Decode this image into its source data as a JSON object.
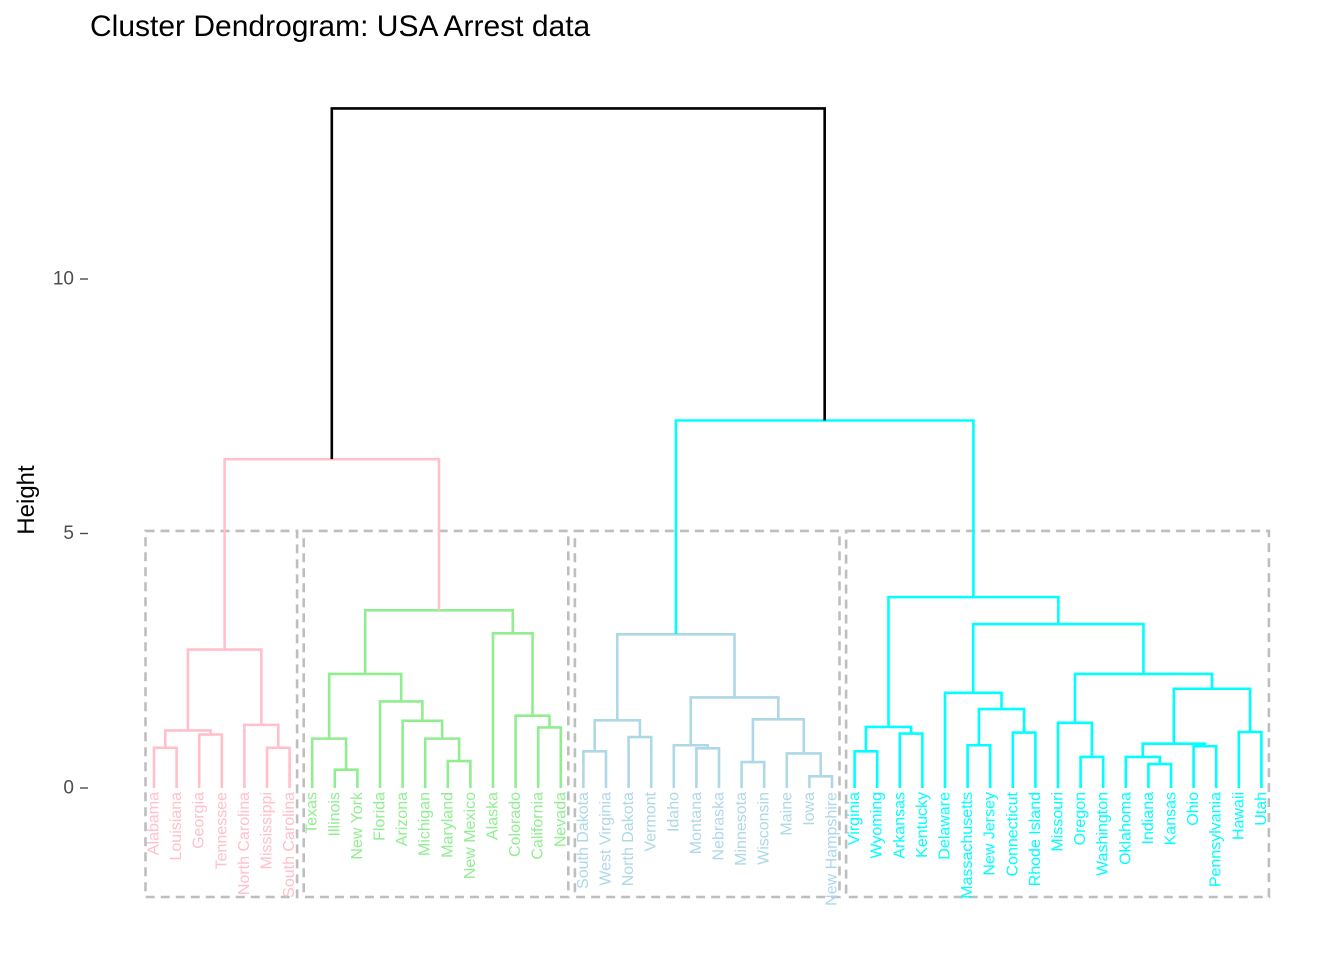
{
  "chart_data": {
    "type": "dendrogram",
    "title": "Cluster Dendrogram: USA Arrest data",
    "ylabel": "Height",
    "xlabel": "",
    "ylim": [
      0,
      13
    ],
    "y_ticks": [
      0,
      5,
      10
    ],
    "grid": false,
    "cut_height": 5.05,
    "colors": {
      "root": "#000000",
      "cluster_1": "#FFC0CB",
      "cluster_2": "#90EE90",
      "cluster_3": "#ADD8E6",
      "cluster_4": "#00FFFF",
      "boxes": "#BEBEBE",
      "tick": "#4d4d4d"
    },
    "clusters": [
      {
        "id": 1,
        "color_key": "cluster_1",
        "leaves": [
          "Alabama",
          "Louisiana",
          "Georgia",
          "Tennessee",
          "North Carolina",
          "Mississippi",
          "South Carolina"
        ]
      },
      {
        "id": 2,
        "color_key": "cluster_2",
        "leaves": [
          "Texas",
          "Illinois",
          "New York",
          "Florida",
          "Arizona",
          "Michigan",
          "Maryland",
          "New Mexico",
          "Alaska",
          "Colorado",
          "California",
          "Nevada"
        ]
      },
      {
        "id": 3,
        "color_key": "cluster_3",
        "leaves": [
          "South Dakota",
          "West Virginia",
          "North Dakota",
          "Vermont",
          "Idaho",
          "Montana",
          "Nebraska",
          "Minnesota",
          "Wisconsin",
          "Maine",
          "Iowa",
          "New Hampshire"
        ]
      },
      {
        "id": 4,
        "color_key": "cluster_4",
        "leaves": [
          "Virginia",
          "Wyoming",
          "Arkansas",
          "Kentucky",
          "Delaware",
          "Massachusetts",
          "New Jersey",
          "Connecticut",
          "Rhode Island",
          "Missouri",
          "Oregon",
          "Washington",
          "Oklahoma",
          "Indiana",
          "Kansas",
          "Ohio",
          "Pennsylvania",
          "Hawaii",
          "Utah"
        ]
      }
    ],
    "tree": {
      "h": 13.35,
      "c": "root",
      "ch": [
        {
          "h": 6.46,
          "c": "cluster_1",
          "ch": [
            {
              "h": 2.72,
              "c": "cluster_1",
              "ch": [
                {
                  "h": 1.13,
                  "c": "cluster_1",
                  "ch": [
                    {
                      "h": 0.79,
                      "c": "cluster_1",
                      "ch": [
                        {
                          "l": "Alabama"
                        },
                        {
                          "l": "Louisiana"
                        }
                      ]
                    },
                    {
                      "h": 1.05,
                      "c": "cluster_1",
                      "ch": [
                        {
                          "l": "Georgia"
                        },
                        {
                          "l": "Tennessee"
                        }
                      ]
                    }
                  ]
                },
                {
                  "h": 1.24,
                  "c": "cluster_1",
                  "ch": [
                    {
                      "l": "North Carolina"
                    },
                    {
                      "h": 0.79,
                      "c": "cluster_1",
                      "ch": [
                        {
                          "l": "Mississippi"
                        },
                        {
                          "l": "South Carolina"
                        }
                      ]
                    }
                  ]
                }
              ]
            },
            {
              "h": 3.49,
              "c": "cluster_2",
              "ch": [
                {
                  "h": 2.24,
                  "c": "cluster_2",
                  "ch": [
                    {
                      "h": 0.97,
                      "c": "cluster_2",
                      "ch": [
                        {
                          "l": "Texas"
                        },
                        {
                          "h": 0.36,
                          "c": "cluster_2",
                          "ch": [
                            {
                              "l": "Illinois"
                            },
                            {
                              "l": "New York"
                            }
                          ]
                        }
                      ]
                    },
                    {
                      "h": 1.7,
                      "c": "cluster_2",
                      "ch": [
                        {
                          "l": "Florida"
                        },
                        {
                          "h": 1.32,
                          "c": "cluster_2",
                          "ch": [
                            {
                              "l": "Arizona"
                            },
                            {
                              "h": 0.97,
                              "c": "cluster_2",
                              "ch": [
                                {
                                  "l": "Michigan"
                                },
                                {
                                  "h": 0.53,
                                  "c": "cluster_2",
                                  "ch": [
                                    {
                                      "l": "Maryland"
                                    },
                                    {
                                      "l": "New Mexico"
                                    }
                                  ]
                                }
                              ]
                            }
                          ]
                        }
                      ]
                    }
                  ]
                },
                {
                  "h": 3.04,
                  "c": "cluster_2",
                  "ch": [
                    {
                      "l": "Alaska"
                    },
                    {
                      "h": 1.42,
                      "c": "cluster_2",
                      "ch": [
                        {
                          "l": "Colorado"
                        },
                        {
                          "h": 1.19,
                          "c": "cluster_2",
                          "ch": [
                            {
                              "l": "California"
                            },
                            {
                              "l": "Nevada"
                            }
                          ]
                        }
                      ]
                    }
                  ]
                }
              ]
            }
          ]
        },
        {
          "h": 7.22,
          "c": "cluster_4",
          "ch": [
            {
              "h": 3.02,
              "c": "cluster_3",
              "ch": [
                {
                  "h": 1.33,
                  "c": "cluster_3",
                  "ch": [
                    {
                      "h": 0.72,
                      "c": "cluster_3",
                      "ch": [
                        {
                          "l": "South Dakota"
                        },
                        {
                          "l": "West Virginia"
                        }
                      ]
                    },
                    {
                      "h": 1.0,
                      "c": "cluster_3",
                      "ch": [
                        {
                          "l": "North Dakota"
                        },
                        {
                          "l": "Vermont"
                        }
                      ]
                    }
                  ]
                },
                {
                  "h": 1.78,
                  "c": "cluster_3",
                  "ch": [
                    {
                      "h": 0.84,
                      "c": "cluster_3",
                      "ch": [
                        {
                          "l": "Idaho"
                        },
                        {
                          "h": 0.78,
                          "c": "cluster_3",
                          "ch": [
                            {
                              "l": "Montana"
                            },
                            {
                              "l": "Nebraska"
                            }
                          ]
                        }
                      ]
                    },
                    {
                      "h": 1.35,
                      "c": "cluster_3",
                      "ch": [
                        {
                          "h": 0.51,
                          "c": "cluster_3",
                          "ch": [
                            {
                              "l": "Minnesota"
                            },
                            {
                              "l": "Wisconsin"
                            }
                          ]
                        },
                        {
                          "h": 0.68,
                          "c": "cluster_3",
                          "ch": [
                            {
                              "l": "Maine"
                            },
                            {
                              "h": 0.23,
                              "c": "cluster_3",
                              "ch": [
                                {
                                  "l": "Iowa"
                                },
                                {
                                  "l": "New Hampshire"
                                }
                              ]
                            }
                          ]
                        }
                      ]
                    }
                  ]
                }
              ]
            },
            {
              "h": 3.75,
              "c": "cluster_4",
              "ch": [
                {
                  "h": 1.2,
                  "c": "cluster_4",
                  "ch": [
                    {
                      "h": 0.72,
                      "c": "cluster_4",
                      "ch": [
                        {
                          "l": "Virginia"
                        },
                        {
                          "l": "Wyoming"
                        }
                      ]
                    },
                    {
                      "h": 1.07,
                      "c": "cluster_4",
                      "ch": [
                        {
                          "l": "Arkansas"
                        },
                        {
                          "l": "Kentucky"
                        }
                      ]
                    }
                  ]
                },
                {
                  "h": 3.22,
                  "c": "cluster_4",
                  "ch": [
                    {
                      "h": 1.87,
                      "c": "cluster_4",
                      "ch": [
                        {
                          "l": "Delaware"
                        },
                        {
                          "h": 1.55,
                          "c": "cluster_4",
                          "ch": [
                            {
                              "h": 0.84,
                              "c": "cluster_4",
                              "ch": [
                                {
                                  "l": "Massachusetts"
                                },
                                {
                                  "l": "New Jersey"
                                }
                              ]
                            },
                            {
                              "h": 1.09,
                              "c": "cluster_4",
                              "ch": [
                                {
                                  "l": "Connecticut"
                                },
                                {
                                  "l": "Rhode Island"
                                }
                              ]
                            }
                          ]
                        }
                      ]
                    },
                    {
                      "h": 2.24,
                      "c": "cluster_4",
                      "ch": [
                        {
                          "h": 1.28,
                          "c": "cluster_4",
                          "ch": [
                            {
                              "l": "Missouri"
                            },
                            {
                              "h": 0.61,
                              "c": "cluster_4",
                              "ch": [
                                {
                                  "l": "Oregon"
                                },
                                {
                                  "l": "Washington"
                                }
                              ]
                            }
                          ]
                        },
                        {
                          "h": 1.95,
                          "c": "cluster_4",
                          "ch": [
                            {
                              "h": 0.87,
                              "c": "cluster_4",
                              "ch": [
                                {
                                  "h": 0.61,
                                  "c": "cluster_4",
                                  "ch": [
                                    {
                                      "l": "Oklahoma"
                                    },
                                    {
                                      "h": 0.47,
                                      "c": "cluster_4",
                                      "ch": [
                                        {
                                          "l": "Indiana"
                                        },
                                        {
                                          "l": "Kansas"
                                        }
                                      ]
                                    }
                                  ]
                                },
                                {
                                  "h": 0.82,
                                  "c": "cluster_4",
                                  "ch": [
                                    {
                                      "l": "Ohio"
                                    },
                                    {
                                      "l": "Pennsylvania"
                                    }
                                  ]
                                }
                              ]
                            },
                            {
                              "h": 1.1,
                              "c": "cluster_4",
                              "ch": [
                                {
                                  "l": "Hawaii"
                                },
                                {
                                  "l": "Utah"
                                }
                              ]
                            }
                          ]
                        }
                      ]
                    }
                  ]
                }
              ]
            }
          ]
        }
      ]
    }
  }
}
